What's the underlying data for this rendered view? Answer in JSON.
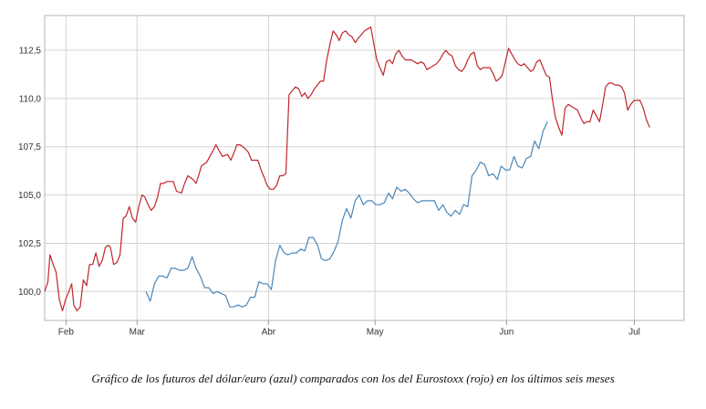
{
  "caption": "Gráfico de los futuros del dólar/euro (azul) comparados con los del Eurostoxx (rojo) en los últimos seis meses",
  "chart_data": {
    "type": "line",
    "title": "",
    "xlabel": "",
    "ylabel": "",
    "x_range": [
      0,
      180
    ],
    "ylim": [
      98.5,
      114.3
    ],
    "grid": true,
    "x_ticks": [
      {
        "label": "Feb",
        "x": 6
      },
      {
        "label": "Mar",
        "x": 26
      },
      {
        "label": "Abr",
        "x": 63
      },
      {
        "label": "May",
        "x": 93
      },
      {
        "label": "Jun",
        "x": 130
      },
      {
        "label": "Jul",
        "x": 166
      }
    ],
    "y_ticks": [
      {
        "label": "100,0",
        "value": 100.0
      },
      {
        "label": "102,5",
        "value": 102.5
      },
      {
        "label": "105,0",
        "value": 105.0
      },
      {
        "label": "107,5",
        "value": 107.5
      },
      {
        "label": "110,0",
        "value": 110.0
      },
      {
        "label": "112,5",
        "value": 112.5
      }
    ],
    "series": [
      {
        "color": "#c0262d",
        "points": [
          [
            0,
            100.0
          ],
          [
            0.9,
            100.5
          ],
          [
            1.5,
            101.9
          ],
          [
            2.4,
            101.4
          ],
          [
            3.2,
            101.0
          ],
          [
            4.1,
            99.6
          ],
          [
            5.0,
            99.0
          ],
          [
            5.9,
            99.6
          ],
          [
            6.8,
            100.0
          ],
          [
            7.6,
            100.4
          ],
          [
            8.2,
            99.3
          ],
          [
            9.1,
            99.0
          ],
          [
            10.0,
            99.2
          ],
          [
            10.9,
            100.6
          ],
          [
            11.8,
            100.3
          ],
          [
            12.6,
            101.4
          ],
          [
            13.5,
            101.4
          ],
          [
            14.4,
            102.0
          ],
          [
            15.3,
            101.3
          ],
          [
            16.2,
            101.6
          ],
          [
            17.1,
            102.3
          ],
          [
            17.9,
            102.4
          ],
          [
            18.5,
            102.3
          ],
          [
            19.4,
            101.4
          ],
          [
            20.3,
            101.5
          ],
          [
            21.2,
            101.9
          ],
          [
            22.1,
            103.8
          ],
          [
            22.9,
            103.9
          ],
          [
            23.8,
            104.4
          ],
          [
            24.7,
            103.8
          ],
          [
            25.6,
            103.6
          ],
          [
            26.5,
            104.4
          ],
          [
            27.4,
            105.0
          ],
          [
            28.2,
            104.9
          ],
          [
            29.1,
            104.5
          ],
          [
            30.0,
            104.2
          ],
          [
            30.9,
            104.4
          ],
          [
            31.8,
            104.9
          ],
          [
            32.6,
            105.6
          ],
          [
            33.5,
            105.6
          ],
          [
            34.4,
            105.7
          ],
          [
            35.3,
            105.7
          ],
          [
            36.2,
            105.7
          ],
          [
            37.1,
            105.2
          ],
          [
            38.5,
            105.1
          ],
          [
            39.4,
            105.6
          ],
          [
            40.3,
            106.0
          ],
          [
            41.8,
            105.8
          ],
          [
            42.6,
            105.6
          ],
          [
            43.5,
            106.1
          ],
          [
            44.1,
            106.5
          ],
          [
            45.6,
            106.7
          ],
          [
            46.5,
            107.0
          ],
          [
            47.4,
            107.3
          ],
          [
            48.2,
            107.6
          ],
          [
            49.1,
            107.3
          ],
          [
            50.0,
            107.0
          ],
          [
            51.5,
            107.1
          ],
          [
            52.4,
            106.8
          ],
          [
            53.3,
            107.2
          ],
          [
            54.1,
            107.6
          ],
          [
            55.0,
            107.6
          ],
          [
            56.5,
            107.4
          ],
          [
            57.4,
            107.2
          ],
          [
            58.2,
            106.8
          ],
          [
            59.1,
            106.8
          ],
          [
            60.0,
            106.8
          ],
          [
            60.9,
            106.3
          ],
          [
            61.8,
            105.9
          ],
          [
            62.6,
            105.5
          ],
          [
            63.5,
            105.3
          ],
          [
            64.4,
            105.3
          ],
          [
            65.3,
            105.5
          ],
          [
            66.2,
            106.0
          ],
          [
            67.1,
            106.0
          ],
          [
            67.9,
            106.1
          ],
          [
            68.8,
            110.2
          ],
          [
            69.7,
            110.4
          ],
          [
            70.6,
            110.6
          ],
          [
            71.5,
            110.5
          ],
          [
            72.4,
            110.1
          ],
          [
            73.2,
            110.3
          ],
          [
            74.1,
            110.0
          ],
          [
            75.0,
            110.2
          ],
          [
            75.9,
            110.5
          ],
          [
            76.8,
            110.7
          ],
          [
            77.6,
            110.9
          ],
          [
            78.5,
            110.9
          ],
          [
            79.4,
            112.0
          ],
          [
            80.3,
            112.8
          ],
          [
            81.2,
            113.5
          ],
          [
            82.1,
            113.3
          ],
          [
            82.9,
            113.0
          ],
          [
            83.8,
            113.4
          ],
          [
            84.7,
            113.5
          ],
          [
            85.6,
            113.3
          ],
          [
            86.5,
            113.2
          ],
          [
            87.4,
            112.9
          ],
          [
            88.2,
            113.1
          ],
          [
            89.1,
            113.3
          ],
          [
            90.0,
            113.5
          ],
          [
            90.9,
            113.6
          ],
          [
            91.8,
            113.7
          ],
          [
            92.6,
            112.9
          ],
          [
            93.5,
            112.0
          ],
          [
            94.4,
            111.6
          ],
          [
            95.3,
            111.2
          ],
          [
            96.2,
            111.9
          ],
          [
            97.1,
            112.0
          ],
          [
            97.9,
            111.8
          ],
          [
            98.8,
            112.3
          ],
          [
            99.7,
            112.5
          ],
          [
            100.6,
            112.2
          ],
          [
            101.5,
            112.0
          ],
          [
            102.4,
            112.0
          ],
          [
            103.2,
            112.0
          ],
          [
            104.1,
            111.9
          ],
          [
            105.0,
            111.8
          ],
          [
            105.9,
            111.9
          ],
          [
            106.8,
            111.8
          ],
          [
            107.6,
            111.5
          ],
          [
            108.5,
            111.6
          ],
          [
            109.4,
            111.7
          ],
          [
            110.3,
            111.8
          ],
          [
            111.2,
            112.0
          ],
          [
            112.1,
            112.3
          ],
          [
            112.9,
            112.5
          ],
          [
            113.8,
            112.3
          ],
          [
            114.7,
            112.2
          ],
          [
            115.6,
            111.7
          ],
          [
            116.5,
            111.5
          ],
          [
            117.4,
            111.4
          ],
          [
            118.2,
            111.6
          ],
          [
            119.1,
            112.0
          ],
          [
            120.0,
            112.3
          ],
          [
            120.9,
            112.4
          ],
          [
            121.8,
            111.7
          ],
          [
            122.6,
            111.5
          ],
          [
            123.5,
            111.6
          ],
          [
            124.4,
            111.6
          ],
          [
            125.3,
            111.6
          ],
          [
            126.2,
            111.3
          ],
          [
            127.1,
            110.9
          ],
          [
            127.9,
            111.0
          ],
          [
            128.8,
            111.2
          ],
          [
            129.7,
            111.9
          ],
          [
            130.6,
            112.6
          ],
          [
            131.5,
            112.3
          ],
          [
            132.4,
            112.0
          ],
          [
            133.2,
            111.8
          ],
          [
            134.1,
            111.7
          ],
          [
            135.0,
            111.8
          ],
          [
            135.9,
            111.6
          ],
          [
            136.8,
            111.4
          ],
          [
            137.6,
            111.5
          ],
          [
            138.5,
            111.9
          ],
          [
            139.4,
            112.0
          ],
          [
            140.3,
            111.6
          ],
          [
            141.2,
            111.2
          ],
          [
            142.1,
            111.1
          ],
          [
            142.9,
            110.0
          ],
          [
            143.8,
            109.0
          ],
          [
            144.7,
            108.5
          ],
          [
            145.6,
            108.1
          ],
          [
            146.5,
            109.5
          ],
          [
            147.4,
            109.7
          ],
          [
            148.2,
            109.6
          ],
          [
            149.1,
            109.5
          ],
          [
            150.0,
            109.4
          ],
          [
            150.9,
            109.0
          ],
          [
            151.8,
            108.7
          ],
          [
            152.6,
            108.8
          ],
          [
            153.5,
            108.8
          ],
          [
            154.4,
            109.4
          ],
          [
            155.3,
            109.1
          ],
          [
            156.2,
            108.8
          ],
          [
            157.1,
            109.7
          ],
          [
            157.9,
            110.6
          ],
          [
            158.8,
            110.8
          ],
          [
            159.7,
            110.8
          ],
          [
            160.6,
            110.7
          ],
          [
            161.5,
            110.7
          ],
          [
            162.4,
            110.6
          ],
          [
            163.2,
            110.3
          ],
          [
            164.1,
            109.4
          ],
          [
            165.0,
            109.7
          ],
          [
            165.9,
            109.9
          ],
          [
            166.8,
            109.9
          ],
          [
            167.6,
            109.9
          ],
          [
            168.5,
            109.5
          ],
          [
            169.4,
            108.9
          ],
          [
            170.3,
            108.5
          ]
        ]
      },
      {
        "color": "#4a87ba",
        "points": [
          [
            28.5,
            100.0
          ],
          [
            29.7,
            99.5
          ],
          [
            30.9,
            100.4
          ],
          [
            32.1,
            100.8
          ],
          [
            33.2,
            100.8
          ],
          [
            34.4,
            100.7
          ],
          [
            35.6,
            101.2
          ],
          [
            36.8,
            101.2
          ],
          [
            37.9,
            101.1
          ],
          [
            39.1,
            101.1
          ],
          [
            40.3,
            101.2
          ],
          [
            41.5,
            101.8
          ],
          [
            42.6,
            101.2
          ],
          [
            43.8,
            100.8
          ],
          [
            45.0,
            100.2
          ],
          [
            46.2,
            100.2
          ],
          [
            47.4,
            99.9
          ],
          [
            48.5,
            100.0
          ],
          [
            49.7,
            99.9
          ],
          [
            50.9,
            99.8
          ],
          [
            52.1,
            99.2
          ],
          [
            53.2,
            99.2
          ],
          [
            54.4,
            99.3
          ],
          [
            55.6,
            99.2
          ],
          [
            56.8,
            99.3
          ],
          [
            57.9,
            99.7
          ],
          [
            59.1,
            99.7
          ],
          [
            60.3,
            100.5
          ],
          [
            61.5,
            100.4
          ],
          [
            62.6,
            100.4
          ],
          [
            63.8,
            100.1
          ],
          [
            65.0,
            101.6
          ],
          [
            66.2,
            102.4
          ],
          [
            67.4,
            102.0
          ],
          [
            68.5,
            101.9
          ],
          [
            69.7,
            102.0
          ],
          [
            70.9,
            102.0
          ],
          [
            72.1,
            102.2
          ],
          [
            73.2,
            102.1
          ],
          [
            74.4,
            102.8
          ],
          [
            75.6,
            102.8
          ],
          [
            76.8,
            102.4
          ],
          [
            77.9,
            101.7
          ],
          [
            79.1,
            101.6
          ],
          [
            80.3,
            101.7
          ],
          [
            81.5,
            102.1
          ],
          [
            82.6,
            102.6
          ],
          [
            83.8,
            103.7
          ],
          [
            85.0,
            104.3
          ],
          [
            86.2,
            103.8
          ],
          [
            87.4,
            104.7
          ],
          [
            88.5,
            105.0
          ],
          [
            89.7,
            104.5
          ],
          [
            90.9,
            104.7
          ],
          [
            92.1,
            104.7
          ],
          [
            93.2,
            104.5
          ],
          [
            94.4,
            104.5
          ],
          [
            95.6,
            104.6
          ],
          [
            96.8,
            105.1
          ],
          [
            97.9,
            104.8
          ],
          [
            99.1,
            105.4
          ],
          [
            100.3,
            105.2
          ],
          [
            101.5,
            105.3
          ],
          [
            102.6,
            105.1
          ],
          [
            103.8,
            104.8
          ],
          [
            105.0,
            104.6
          ],
          [
            106.2,
            104.7
          ],
          [
            107.4,
            104.7
          ],
          [
            108.5,
            104.7
          ],
          [
            109.7,
            104.7
          ],
          [
            110.9,
            104.2
          ],
          [
            112.1,
            104.5
          ],
          [
            113.2,
            104.1
          ],
          [
            114.4,
            103.9
          ],
          [
            115.6,
            104.2
          ],
          [
            116.8,
            104.0
          ],
          [
            117.9,
            104.5
          ],
          [
            119.1,
            104.4
          ],
          [
            120.3,
            106.0
          ],
          [
            121.5,
            106.3
          ],
          [
            122.6,
            106.7
          ],
          [
            123.8,
            106.6
          ],
          [
            125.0,
            106.0
          ],
          [
            126.2,
            106.1
          ],
          [
            127.4,
            105.8
          ],
          [
            128.5,
            106.5
          ],
          [
            129.7,
            106.3
          ],
          [
            130.9,
            106.3
          ],
          [
            132.1,
            107.0
          ],
          [
            133.2,
            106.5
          ],
          [
            134.4,
            106.4
          ],
          [
            135.6,
            106.9
          ],
          [
            136.8,
            107.0
          ],
          [
            137.9,
            107.8
          ],
          [
            139.1,
            107.4
          ],
          [
            140.3,
            108.3
          ],
          [
            141.5,
            108.8
          ]
        ]
      }
    ]
  }
}
